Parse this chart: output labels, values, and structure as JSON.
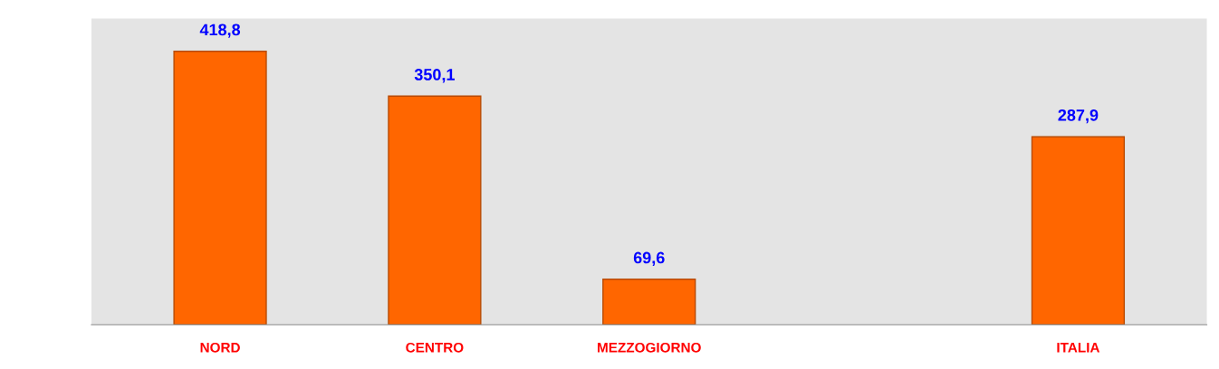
{
  "chart_data": {
    "type": "bar",
    "categories": [
      "NORD",
      "CENTRO",
      "MEZZOGIORNO",
      null,
      "ITALIA"
    ],
    "values": [
      418.8,
      350.1,
      69.6,
      null,
      287.9
    ],
    "value_labels": [
      "418,8",
      "350,1",
      "69,6",
      null,
      "287,9"
    ],
    "color": "#ff6600",
    "grid": false,
    "legend": false
  }
}
